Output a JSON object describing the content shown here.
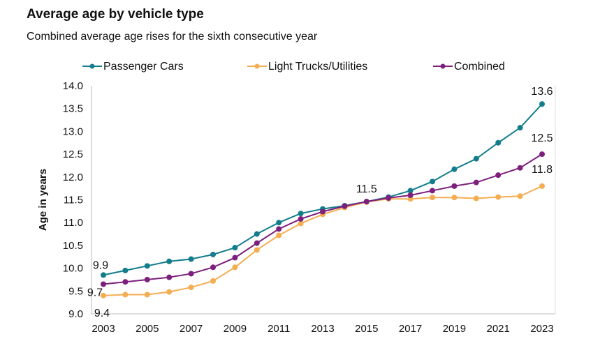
{
  "chart_data": {
    "type": "line",
    "title": "Average age by vehicle type",
    "subtitle": "Combined average age rises for the sixth consecutive year",
    "xlabel": "",
    "ylabel": "Age in years",
    "ylim": [
      9.0,
      14.0
    ],
    "yticks": [
      "9.0",
      "9.5",
      "10.0",
      "10.5",
      "11.0",
      "11.5",
      "12.0",
      "12.5",
      "13.0",
      "13.5",
      "14.0"
    ],
    "xticks": [
      "2003",
      "2005",
      "2007",
      "2009",
      "2011",
      "2013",
      "2015",
      "2017",
      "2019",
      "2021",
      "2023"
    ],
    "legend_position": "top",
    "grid": false,
    "x": [
      2003,
      2004,
      2005,
      2006,
      2007,
      2008,
      2009,
      2010,
      2011,
      2012,
      2013,
      2014,
      2015,
      2016,
      2017,
      2018,
      2019,
      2020,
      2021,
      2022,
      2023
    ],
    "series": [
      {
        "name": "Passenger Cars",
        "color": "#137d8c",
        "values": [
          9.85,
          9.95,
          10.05,
          10.15,
          10.2,
          10.3,
          10.45,
          10.75,
          11.0,
          11.2,
          11.3,
          11.37,
          11.46,
          11.56,
          11.7,
          11.9,
          12.17,
          12.4,
          12.75,
          13.08,
          13.6
        ]
      },
      {
        "name": "Light Trucks/Utilities",
        "color": "#f5ad52",
        "values": [
          9.4,
          9.42,
          9.42,
          9.48,
          9.58,
          9.72,
          10.02,
          10.4,
          10.72,
          10.98,
          11.18,
          11.33,
          11.45,
          11.52,
          11.52,
          11.55,
          11.55,
          11.53,
          11.56,
          11.58,
          11.8
        ]
      },
      {
        "name": "Combined",
        "color": "#7d1f7d",
        "values": [
          9.65,
          9.7,
          9.75,
          9.8,
          9.88,
          10.02,
          10.23,
          10.55,
          10.86,
          11.08,
          11.24,
          11.36,
          11.46,
          11.54,
          11.6,
          11.7,
          11.8,
          11.88,
          12.04,
          12.2,
          12.5
        ]
      }
    ],
    "annotations": [
      {
        "text": "9.9",
        "x": 2003,
        "series": 0
      },
      {
        "text": "9.7",
        "x": 2003,
        "series": 2
      },
      {
        "text": "9.4",
        "x": 2003,
        "series": 1
      },
      {
        "text": "11.5",
        "x": 2015,
        "series": 0
      },
      {
        "text": "13.6",
        "x": 2023,
        "series": 0
      },
      {
        "text": "12.5",
        "x": 2023,
        "series": 2
      },
      {
        "text": "11.8",
        "x": 2023,
        "series": 1
      }
    ]
  }
}
